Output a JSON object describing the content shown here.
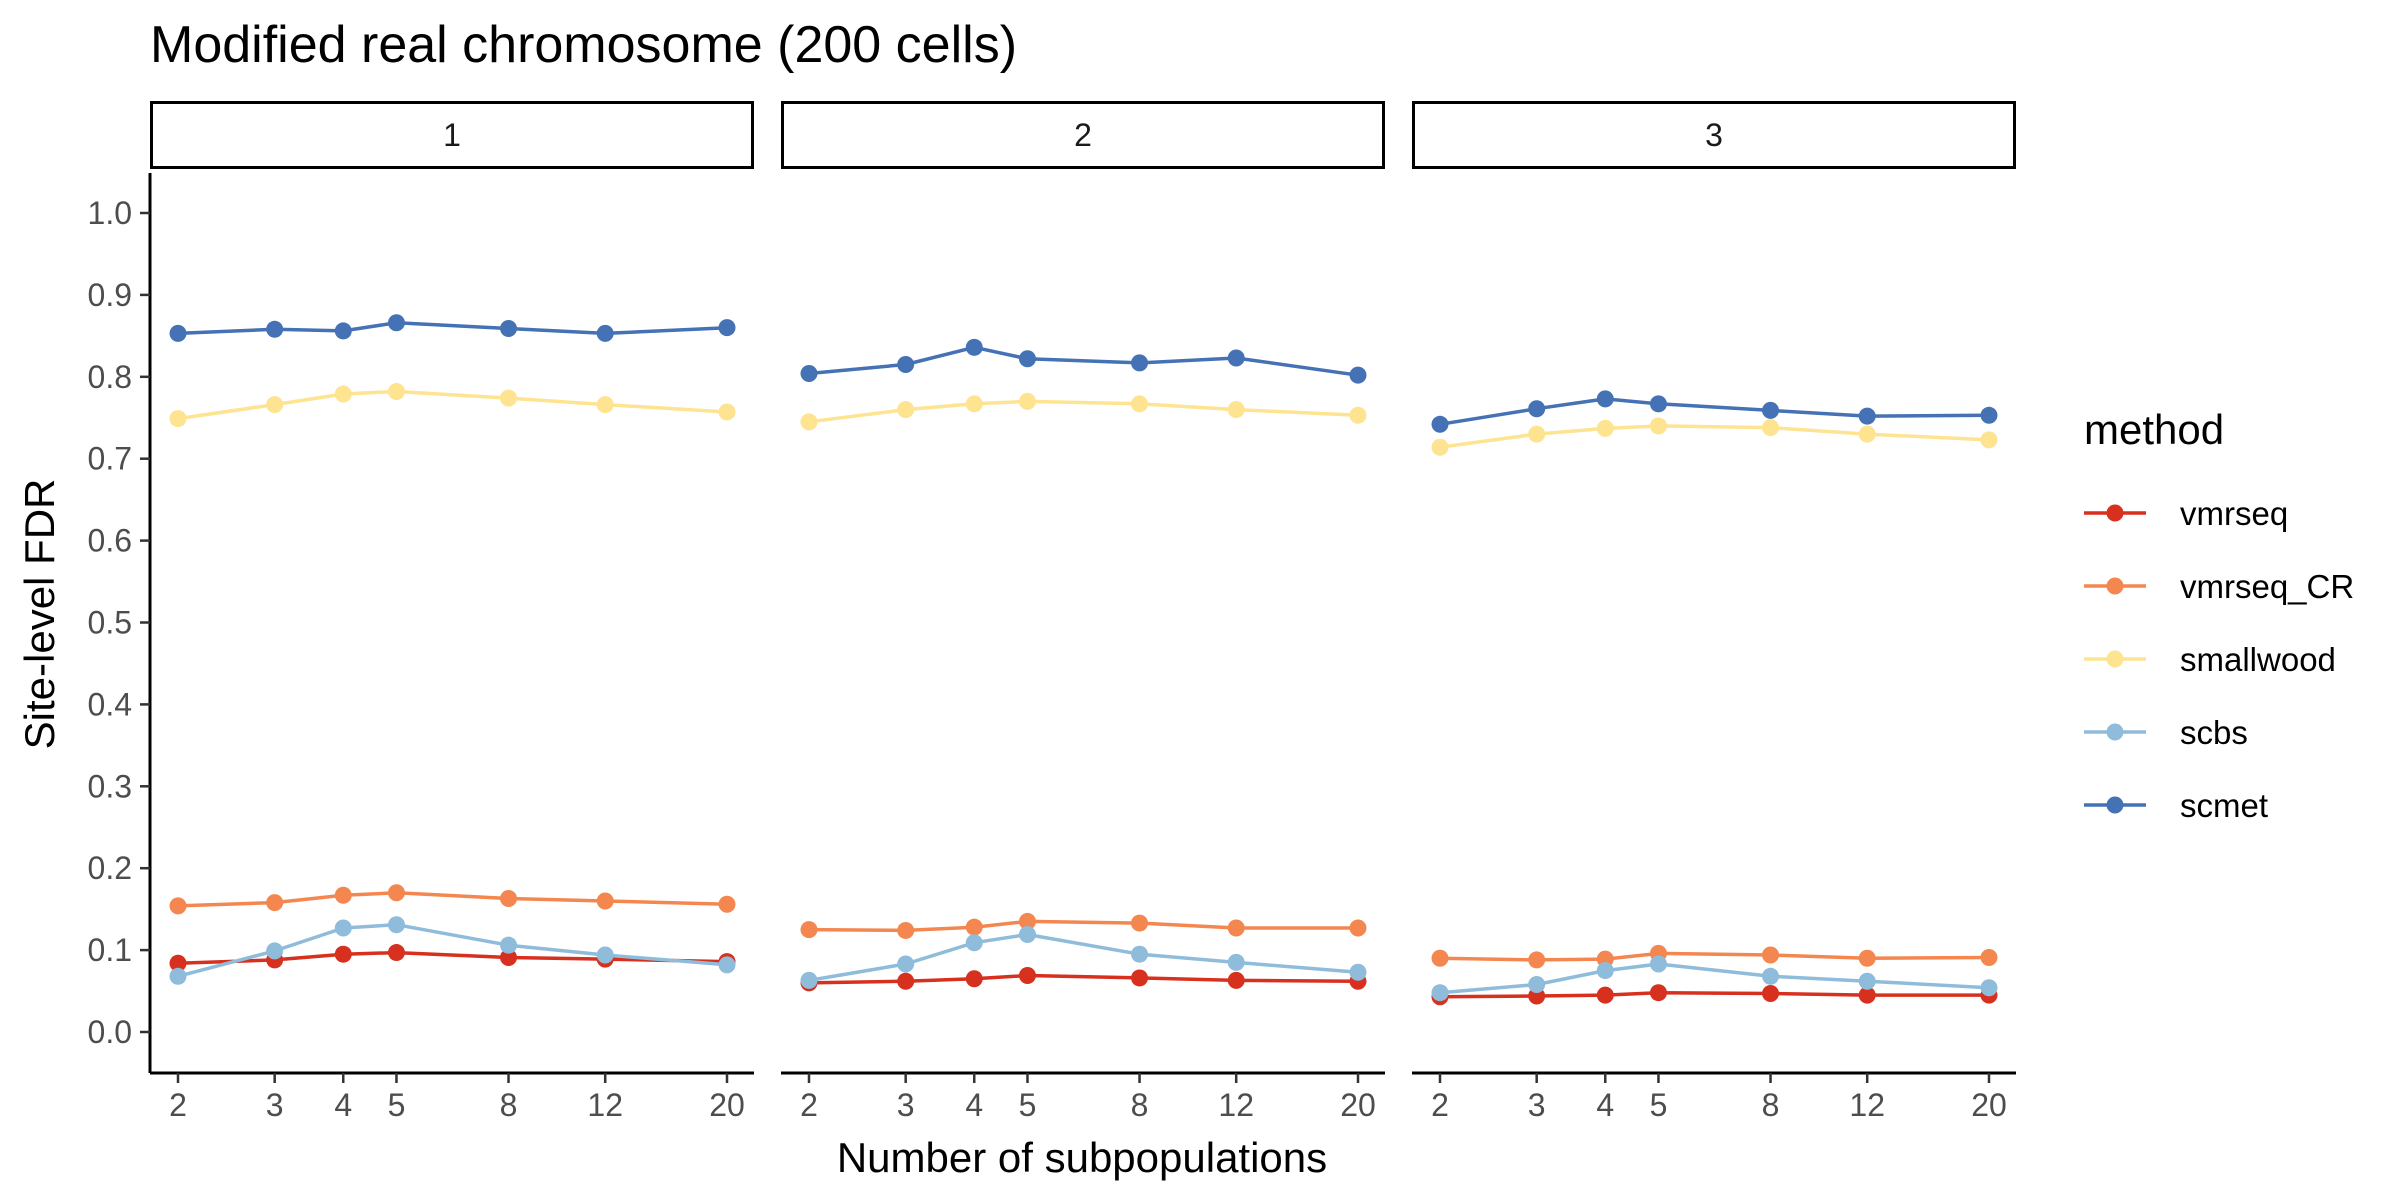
{
  "chart_data": {
    "type": "line",
    "title": "Modified real chromosome (200 cells)",
    "xlabel": "Number of subpopulations",
    "ylabel": "Site-level FDR",
    "x": [
      2,
      3,
      4,
      5,
      8,
      12,
      20
    ],
    "x_scale": "log",
    "x_tick_labels": [
      "2",
      "3",
      "4",
      "5",
      "8",
      "12",
      "20"
    ],
    "ylim": [
      0,
      1
    ],
    "y_tick_labels": [
      "0.0",
      "0.1",
      "0.2",
      "0.3",
      "0.4",
      "0.5",
      "0.6",
      "0.7",
      "0.8",
      "0.9",
      "1.0"
    ],
    "grid": false,
    "legend_title": "method",
    "legend_position": "right",
    "facets": [
      {
        "label": "1",
        "series": [
          {
            "name": "vmrseq",
            "color": "#d7301f",
            "values": [
              0.084,
              0.088,
              0.095,
              0.097,
              0.091,
              0.089,
              0.086
            ]
          },
          {
            "name": "vmrseq_CR",
            "color": "#f4874f",
            "values": [
              0.154,
              0.158,
              0.167,
              0.17,
              0.163,
              0.16,
              0.156
            ]
          },
          {
            "name": "smallwood",
            "color": "#fee391",
            "values": [
              0.749,
              0.766,
              0.779,
              0.782,
              0.774,
              0.766,
              0.757
            ]
          },
          {
            "name": "scbs",
            "color": "#8fbcdb",
            "values": [
              0.068,
              0.099,
              0.127,
              0.131,
              0.106,
              0.094,
              0.082
            ]
          },
          {
            "name": "scmet",
            "color": "#4472b4",
            "values": [
              0.853,
              0.858,
              0.856,
              0.866,
              0.859,
              0.853,
              0.86
            ]
          }
        ]
      },
      {
        "label": "2",
        "series": [
          {
            "name": "vmrseq",
            "color": "#d7301f",
            "values": [
              0.06,
              0.062,
              0.065,
              0.069,
              0.066,
              0.063,
              0.062
            ]
          },
          {
            "name": "vmrseq_CR",
            "color": "#f4874f",
            "values": [
              0.125,
              0.124,
              0.128,
              0.135,
              0.133,
              0.127,
              0.127
            ]
          },
          {
            "name": "smallwood",
            "color": "#fee391",
            "values": [
              0.745,
              0.76,
              0.767,
              0.77,
              0.767,
              0.76,
              0.753
            ]
          },
          {
            "name": "scbs",
            "color": "#8fbcdb",
            "values": [
              0.063,
              0.083,
              0.109,
              0.119,
              0.095,
              0.085,
              0.073
            ]
          },
          {
            "name": "scmet",
            "color": "#4472b4",
            "values": [
              0.804,
              0.815,
              0.836,
              0.822,
              0.817,
              0.823,
              0.802
            ]
          }
        ]
      },
      {
        "label": "3",
        "series": [
          {
            "name": "vmrseq",
            "color": "#d7301f",
            "values": [
              0.043,
              0.044,
              0.045,
              0.048,
              0.047,
              0.045,
              0.045
            ]
          },
          {
            "name": "vmrseq_CR",
            "color": "#f4874f",
            "values": [
              0.09,
              0.088,
              0.089,
              0.096,
              0.094,
              0.09,
              0.091
            ]
          },
          {
            "name": "smallwood",
            "color": "#fee391",
            "values": [
              0.714,
              0.73,
              0.737,
              0.74,
              0.738,
              0.73,
              0.723
            ]
          },
          {
            "name": "scbs",
            "color": "#8fbcdb",
            "values": [
              0.048,
              0.058,
              0.075,
              0.083,
              0.068,
              0.062,
              0.054
            ]
          },
          {
            "name": "scmet",
            "color": "#4472b4",
            "values": [
              0.742,
              0.761,
              0.773,
              0.767,
              0.759,
              0.752,
              0.753
            ]
          }
        ]
      }
    ]
  }
}
